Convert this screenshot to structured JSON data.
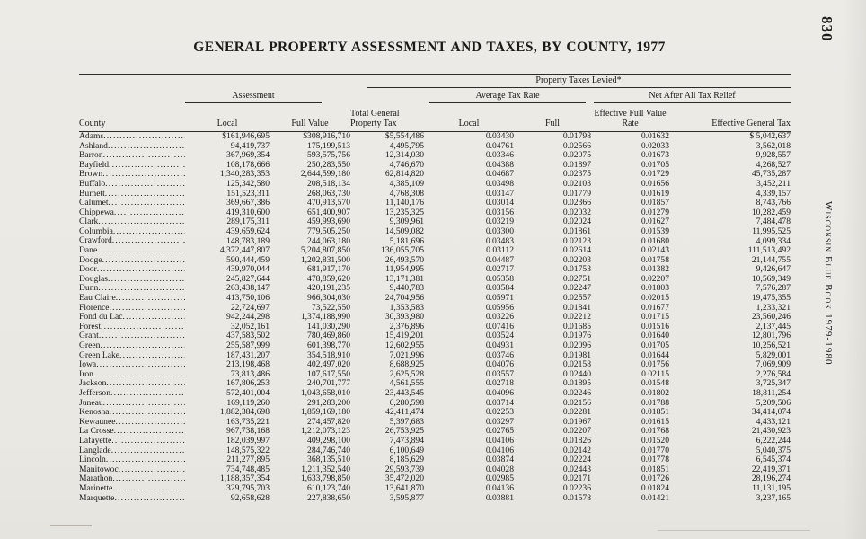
{
  "page": {
    "title": "GENERAL PROPERTY ASSESSMENT AND TAXES, BY COUNTY, 1977",
    "page_number": "830",
    "side_text": "Wisconsin Blue Book 1979-1980"
  },
  "table": {
    "groups": {
      "taxes_levied": "Property Taxes Levied*",
      "assessment": "Assessment",
      "avg_tax_rate": "Average Tax Rate",
      "net_after_relief": "Net After All Tax Relief"
    },
    "columns": {
      "county": "County",
      "local": "Local",
      "full_value": "Full Value",
      "total_tax": "Total General Property Tax",
      "avg_local": "Local",
      "avg_full": "Full",
      "eff_full_rate": "Effective Full Value Rate",
      "eff_general_tax": "Effective General Tax"
    },
    "rows": [
      [
        "Adams",
        "$161,946,695",
        "$308,916,710",
        "$5,554,486",
        "0.03430",
        "0.01798",
        "0.01632",
        "$ 5,042,637"
      ],
      [
        "Ashland",
        "94,419,737",
        "175,199,513",
        "4,495,795",
        "0.04761",
        "0.02566",
        "0.02033",
        "3,562,018"
      ],
      [
        "Barron",
        "367,969,354",
        "593,575,756",
        "12,314,030",
        "0.03346",
        "0.02075",
        "0.01673",
        "9,928,557"
      ],
      [
        "Bayfield",
        "108,178,666",
        "250,283,550",
        "4,746,670",
        "0.04388",
        "0.01897",
        "0.01705",
        "4,268,527"
      ],
      [
        "Brown",
        "1,340,283,353",
        "2,644,599,180",
        "62,814,820",
        "0.04687",
        "0.02375",
        "0.01729",
        "45,735,287"
      ],
      [
        "Buffalo",
        "125,342,580",
        "208,518,134",
        "4,385,109",
        "0.03498",
        "0.02103",
        "0.01656",
        "3,452,211"
      ],
      [
        "Burnett",
        "151,523,311",
        "268,063,730",
        "4,768,308",
        "0.03147",
        "0.01779",
        "0.01619",
        "4,339,157"
      ],
      [
        "Calumet",
        "369,667,386",
        "470,913,570",
        "11,140,176",
        "0.03014",
        "0.02366",
        "0.01857",
        "8,743,766"
      ],
      [
        "Chippewa",
        "419,310,600",
        "651,400,907",
        "13,235,325",
        "0.03156",
        "0.02032",
        "0.01279",
        "10,282,459"
      ],
      [
        "Clark",
        "289,175,311",
        "459,993,690",
        "9,309,961",
        "0.03219",
        "0.02024",
        "0.01627",
        "7,484,478"
      ],
      [
        "Columbia",
        "439,659,624",
        "779,505,250",
        "14,509,082",
        "0.03300",
        "0.01861",
        "0.01539",
        "11,995,525"
      ],
      [
        "Crawford",
        "148,783,189",
        "244,063,180",
        "5,181,696",
        "0.03483",
        "0.02123",
        "0.01680",
        "4,099,334"
      ],
      [
        "Dane",
        "4,372,447,807",
        "5,204,807,850",
        "136,055,705",
        "0.03112",
        "0.02614",
        "0.02143",
        "111,513,492"
      ],
      [
        "Dodge",
        "590,444,459",
        "1,202,831,500",
        "26,493,570",
        "0.04487",
        "0.02203",
        "0.01758",
        "21,144,755"
      ],
      [
        "Door",
        "439,970,044",
        "681,917,170",
        "11,954,995",
        "0.02717",
        "0.01753",
        "0.01382",
        "9,426,647"
      ],
      [
        "Douglas",
        "245,827,644",
        "478,859,620",
        "13,171,381",
        "0.05358",
        "0.02751",
        "0.02207",
        "10,569,349"
      ],
      [
        "Dunn",
        "263,438,147",
        "420,191,235",
        "9,440,783",
        "0.03584",
        "0.02247",
        "0.01803",
        "7,576,287"
      ],
      [
        "Eau Claire",
        "413,750,106",
        "966,304,030",
        "24,704,956",
        "0.05971",
        "0.02557",
        "0.02015",
        "19,475,355"
      ],
      [
        "Florence",
        "22,724,697",
        "73,522,550",
        "1,353,583",
        "0.05956",
        "0.01841",
        "0.01677",
        "1,233,321"
      ],
      [
        "Fond du Lac",
        "942,244,298",
        "1,374,188,990",
        "30,393,980",
        "0.03226",
        "0.02212",
        "0.01715",
        "23,560,246"
      ],
      [
        "Forest",
        "32,052,161",
        "141,030,290",
        "2,376,896",
        "0.07416",
        "0.01685",
        "0.01516",
        "2,137,445"
      ],
      [
        "Grant",
        "437,583,502",
        "780,469,860",
        "15,419,201",
        "0.03524",
        "0.01976",
        "0.01640",
        "12,801,796"
      ],
      [
        "Green",
        "255,587,999",
        "601,398,770",
        "12,602,955",
        "0.04931",
        "0.02096",
        "0.01705",
        "10,256,521"
      ],
      [
        "Green Lake",
        "187,431,207",
        "354,518,910",
        "7,021,996",
        "0.03746",
        "0.01981",
        "0.01644",
        "5,829,001"
      ],
      [
        "Iowa",
        "213,198,468",
        "402,497,020",
        "8,688,925",
        "0.04076",
        "0.02158",
        "0.01756",
        "7,069,909"
      ],
      [
        "Iron",
        "73,813,486",
        "107,617,550",
        "2,625,528",
        "0.03557",
        "0.02440",
        "0.02115",
        "2,276,584"
      ],
      [
        "Jackson",
        "167,806,253",
        "240,701,777",
        "4,561,555",
        "0.02718",
        "0.01895",
        "0.01548",
        "3,725,347"
      ],
      [
        "Jefferson",
        "572,401,004",
        "1,043,658,010",
        "23,443,545",
        "0.04096",
        "0.02246",
        "0.01802",
        "18,811,254"
      ],
      [
        "Juneau",
        "169,119,260",
        "291,283,200",
        "6,280,598",
        "0.03714",
        "0.02156",
        "0.01788",
        "5,209,506"
      ],
      [
        "Kenosha",
        "1,882,384,698",
        "1,859,169,180",
        "42,411,474",
        "0.02253",
        "0.02281",
        "0.01851",
        "34,414,074"
      ],
      [
        "Kewaunee",
        "163,735,221",
        "274,457,820",
        "5,397,683",
        "0.03297",
        "0.01967",
        "0.01615",
        "4,433,121"
      ],
      [
        "La Crosse",
        "967,738,168",
        "1,212,073,123",
        "26,753,925",
        "0.02765",
        "0.02207",
        "0.01768",
        "21,430,923"
      ],
      [
        "Lafayette",
        "182,039,997",
        "409,298,100",
        "7,473,894",
        "0.04106",
        "0.01826",
        "0.01520",
        "6,222,244"
      ],
      [
        "Langlade",
        "148,575,322",
        "284,746,740",
        "6,100,649",
        "0.04106",
        "0.02142",
        "0.01770",
        "5,040,375"
      ],
      [
        "Lincoln",
        "211,277,895",
        "368,135,510",
        "8,185,629",
        "0.03874",
        "0.02224",
        "0.01778",
        "6,545,374"
      ],
      [
        "Manitowoc",
        "734,748,485",
        "1,211,352,540",
        "29,593,739",
        "0.04028",
        "0.02443",
        "0.01851",
        "22,419,371"
      ],
      [
        "Marathon",
        "1,188,357,354",
        "1,633,798,850",
        "35,472,020",
        "0.02985",
        "0.02171",
        "0.01726",
        "28,196,274"
      ],
      [
        "Marinette",
        "329,795,703",
        "610,123,740",
        "13,641,870",
        "0.04136",
        "0.02236",
        "0.01824",
        "11,131,195"
      ],
      [
        "Marquette",
        "92,658,628",
        "227,838,650",
        "3,595,877",
        "0.03881",
        "0.01578",
        "0.01421",
        "3,237,165"
      ]
    ]
  }
}
